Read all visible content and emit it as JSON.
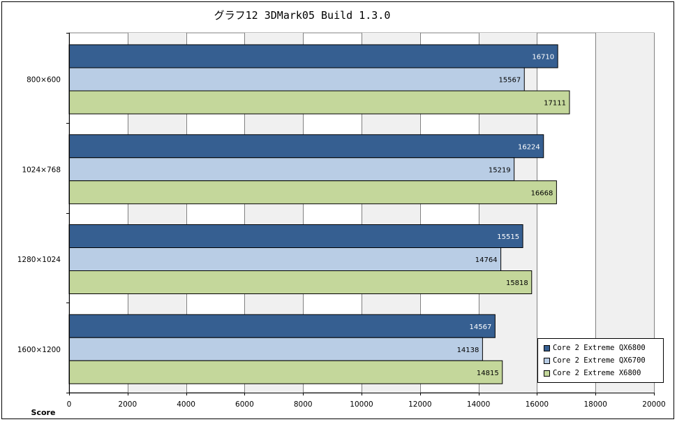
{
  "chart_data": {
    "type": "bar",
    "orientation": "horizontal",
    "title": "グラフ12  3DMark05 Build 1.3.0",
    "xlabel": "Score",
    "xlim": [
      0,
      20000
    ],
    "x_ticks": [
      0,
      2000,
      4000,
      6000,
      8000,
      10000,
      12000,
      14000,
      16000,
      18000,
      20000
    ],
    "grid": true,
    "legend_position": "bottom-right",
    "categories": [
      "800×600",
      "1024×768",
      "1280×1024",
      "1600×1200"
    ],
    "series": [
      {
        "name": "Core 2 Extreme QX6800",
        "color": "#365f91",
        "label_color": "#ffffff",
        "values": [
          16710,
          16224,
          15515,
          14567
        ]
      },
      {
        "name": "Core 2 Extreme QX6700",
        "color": "#b9cde5",
        "label_color": "#000000",
        "values": [
          15567,
          15219,
          14764,
          14138
        ]
      },
      {
        "name": "Core 2 Extreme X6800",
        "color": "#c4d79b",
        "label_color": "#000000",
        "values": [
          17111,
          16668,
          15818,
          14815
        ]
      }
    ]
  }
}
